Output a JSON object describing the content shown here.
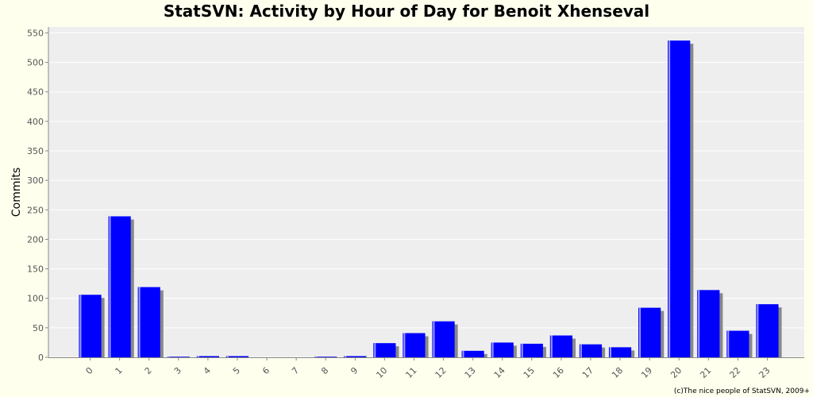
{
  "chart_data": {
    "type": "bar",
    "title": "StatSVN: Activity by Hour of Day for Benoit Xhenseval",
    "xlabel": "",
    "ylabel": "Commits",
    "categories": [
      "0",
      "1",
      "2",
      "3",
      "4",
      "5",
      "6",
      "7",
      "8",
      "9",
      "10",
      "11",
      "12",
      "13",
      "14",
      "15",
      "16",
      "17",
      "18",
      "19",
      "20",
      "21",
      "22",
      "23"
    ],
    "values": [
      106,
      239,
      119,
      1,
      2,
      2,
      0,
      0,
      1,
      2,
      24,
      41,
      61,
      11,
      25,
      23,
      37,
      22,
      17,
      84,
      537,
      114,
      45,
      90
    ],
    "ylim": [
      0,
      560
    ],
    "yticks": [
      0,
      50,
      100,
      150,
      200,
      250,
      300,
      350,
      400,
      450,
      500,
      550
    ],
    "grid": true,
    "bar_color": "#0000ff",
    "shadow_color": "#888888",
    "plot_background": "#eeeeee",
    "page_background": "#ffffee"
  },
  "footer": "(c)The nice people of StatSVN, 2009+"
}
